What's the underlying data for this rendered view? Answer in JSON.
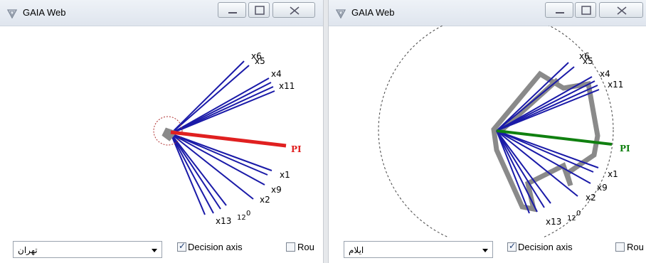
{
  "left_window": {
    "title": "GAIA Web",
    "dropdown_value": "تهران",
    "decision_axis_label": "Decision axis",
    "decision_axis_checked": true,
    "round_label": "Rou",
    "round_checked": false,
    "pi_label": "PI",
    "pi_color": "#e02020",
    "axis_labels": [
      "x6",
      "x5",
      "x4",
      "x11",
      "x1",
      "x9",
      "x2",
      "x13",
      "12",
      "0"
    ]
  },
  "right_window": {
    "title": "GAIA Web",
    "dropdown_value": "ایلام",
    "decision_axis_label": "Decision axis",
    "decision_axis_checked": true,
    "round_label": "Rou",
    "round_checked": false,
    "pi_label": "PI",
    "pi_color": "#108010",
    "axis_labels": [
      "x6",
      "x5",
      "x4",
      "x11",
      "x1",
      "x9",
      "x2",
      "x13",
      "12",
      "0"
    ]
  },
  "colors": {
    "criteria_lines": "#1a1aa8",
    "polygon": "#8a8a8a",
    "dashed_circle": "#444444"
  }
}
